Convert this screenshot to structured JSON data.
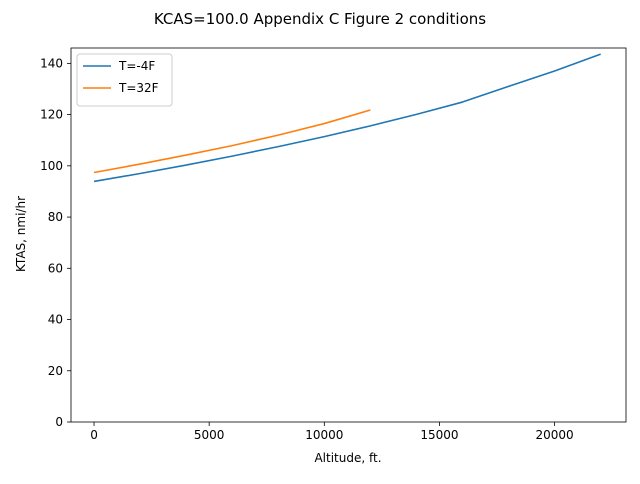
{
  "chart_data": {
    "type": "line",
    "title": "KCAS=100.0 Appendix C Figure 2 conditions",
    "xlabel": "Altitude, ft.",
    "ylabel": "KTAS, nmi/hr",
    "xlim": [
      -1000,
      23100
    ],
    "ylim": [
      0,
      146
    ],
    "xticks": [
      0,
      5000,
      10000,
      15000,
      20000
    ],
    "yticks": [
      0,
      20,
      40,
      60,
      80,
      100,
      120,
      140
    ],
    "grid": false,
    "legend_position": "top-left",
    "series": [
      {
        "name": "T=-4F",
        "color": "#1f77b4",
        "x": [
          0,
          2000,
          4000,
          6000,
          8000,
          10000,
          12000,
          14000,
          16000,
          18000,
          20000,
          22000
        ],
        "y": [
          93.9,
          97.0,
          100.3,
          103.8,
          107.5,
          111.4,
          115.6,
          120.1,
          124.9,
          131.0,
          137.0,
          143.6
        ]
      },
      {
        "name": "T=32F",
        "color": "#ff7f0e",
        "x": [
          0,
          2000,
          4000,
          6000,
          8000,
          10000,
          12000
        ],
        "y": [
          97.4,
          100.7,
          104.2,
          107.9,
          112.0,
          116.5,
          121.8
        ]
      }
    ]
  }
}
